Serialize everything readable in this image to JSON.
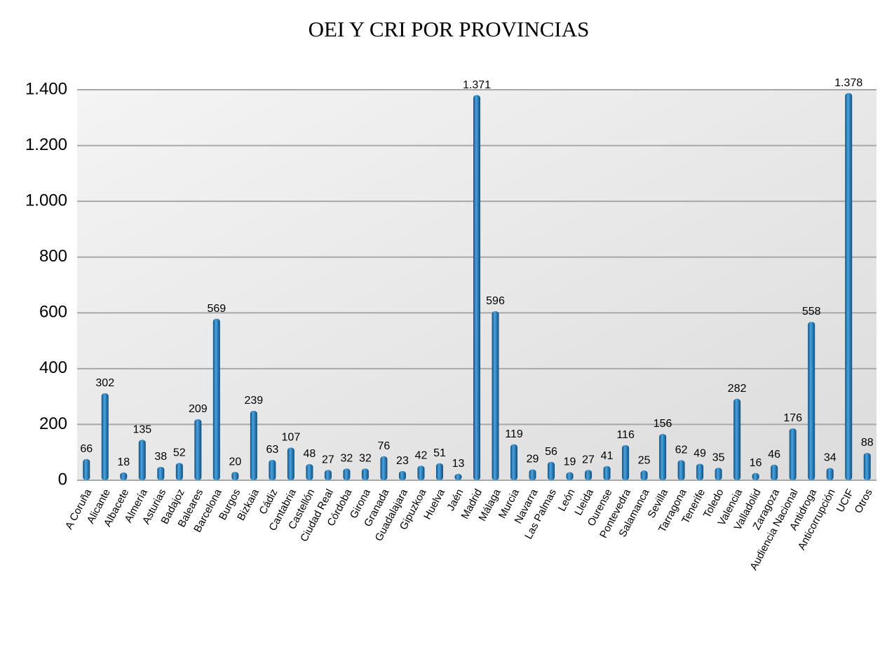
{
  "chart_data": {
    "type": "bar",
    "title": "OEI Y CRI POR PROVINCIAS",
    "categories": [
      "A Coruña",
      "Alicante",
      "Albacete",
      "Almería",
      "Asturias",
      "Badajoz",
      "Baleares",
      "Barcelona",
      "Burgos",
      "Bizkaia",
      "Cádiz",
      "Cantabria",
      "Castellón",
      "Ciudad Real",
      "Córdoba",
      "Girona",
      "Granada",
      "Guadalajara",
      "Gipuzkoa",
      "Huelva",
      "Jaén",
      "Madrid",
      "Málaga",
      "Murcia",
      "Navarra",
      "Las Palmas",
      "León",
      "Lleida",
      "Ourense",
      "Pontevedra",
      "Salamanca",
      "Sevilla",
      "Tarragona",
      "Tenerife",
      "Toledo",
      "Valencia",
      "Valladolid",
      "Zaragoza",
      "Audiencia Nacional",
      "Antidroga",
      "Anticorrupción",
      "UCIF",
      "Otros"
    ],
    "values": [
      66,
      302,
      18,
      135,
      38,
      52,
      209,
      569,
      20,
      239,
      63,
      107,
      48,
      27,
      32,
      32,
      76,
      23,
      42,
      51,
      13,
      1371,
      596,
      119,
      29,
      56,
      19,
      27,
      41,
      116,
      25,
      156,
      62,
      49,
      35,
      282,
      16,
      46,
      176,
      558,
      34,
      1378,
      88
    ],
    "value_labels": [
      "66",
      "302",
      "18",
      "135",
      "38",
      "52",
      "209",
      "569",
      "20",
      "239",
      "63",
      "107",
      "48",
      "27",
      "32",
      "32",
      "76",
      "23",
      "42",
      "51",
      "13",
      "1.371",
      "596",
      "119",
      "29",
      "56",
      "19",
      "27",
      "41",
      "116",
      "25",
      "156",
      "62",
      "49",
      "35",
      "282",
      "16",
      "46",
      "176",
      "558",
      "34",
      "1.378",
      "88"
    ],
    "color": "#1f78b8",
    "ylim": [
      0,
      1400
    ],
    "yticks": [
      0,
      200,
      400,
      600,
      800,
      {
        "value": 1000,
        "label": "1.000"
      },
      {
        "value": 1200,
        "label": "1.200"
      },
      {
        "value": 1400,
        "label": "1.400"
      }
    ],
    "grid": true
  }
}
